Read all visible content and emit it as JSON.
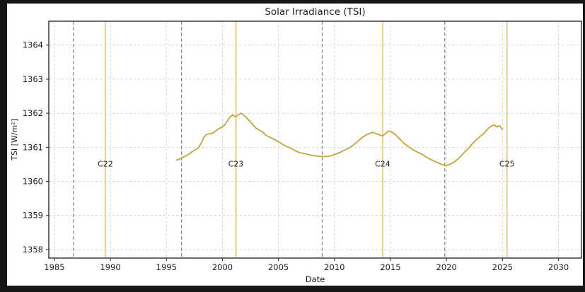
{
  "window": {
    "frame_color": "#161616",
    "figure_background": "#ffffff"
  },
  "chart_data": {
    "type": "line",
    "title": "Solar Irradiance (TSI)",
    "xlabel": "Date",
    "ylabel": "TSI [W/m²]",
    "xlim": [
      1984.5,
      2032.05
    ],
    "ylim": [
      1357.75,
      1364.7
    ],
    "xticks": [
      1985,
      1990,
      1995,
      2000,
      2005,
      2010,
      2015,
      2020,
      2025,
      2030
    ],
    "yticks": [
      1358,
      1359,
      1360,
      1361,
      1362,
      1363,
      1364
    ],
    "grid": true,
    "colors": {
      "line": "#C9A339",
      "cycle_max_line": "#EFD28F",
      "cycle_min_line": "#707070",
      "grid": "#CFCFCF",
      "axis_border": "#3A3A3A",
      "text": "#1F1F1F"
    },
    "solar_cycle_maxima": [
      {
        "label": "C22",
        "year": 1989.55
      },
      {
        "label": "C23",
        "year": 2001.2
      },
      {
        "label": "C24",
        "year": 2014.3
      },
      {
        "label": "C25",
        "year": 2025.4
      }
    ],
    "solar_cycle_minima_years": [
      1986.7,
      1996.35,
      2008.9,
      2019.85
    ],
    "cycle_label_y": 1360.52,
    "series": [
      {
        "name": "TSI",
        "color": "#C9A339",
        "points": [
          [
            1995.9,
            1360.62
          ],
          [
            1996.15,
            1360.65
          ],
          [
            1996.4,
            1360.7
          ],
          [
            1996.7,
            1360.74
          ],
          [
            1997.0,
            1360.8
          ],
          [
            1997.3,
            1360.87
          ],
          [
            1997.6,
            1360.93
          ],
          [
            1997.9,
            1361.0
          ],
          [
            1998.1,
            1361.12
          ],
          [
            1998.35,
            1361.3
          ],
          [
            1998.6,
            1361.38
          ],
          [
            1998.9,
            1361.4
          ],
          [
            1999.15,
            1361.42
          ],
          [
            1999.4,
            1361.48
          ],
          [
            1999.7,
            1361.55
          ],
          [
            2000.0,
            1361.6
          ],
          [
            2000.2,
            1361.66
          ],
          [
            2000.45,
            1361.78
          ],
          [
            2000.7,
            1361.9
          ],
          [
            2000.9,
            1361.95
          ],
          [
            2001.15,
            1361.9
          ],
          [
            2001.45,
            1361.96
          ],
          [
            2001.7,
            1362.0
          ],
          [
            2001.95,
            1361.93
          ],
          [
            2002.2,
            1361.85
          ],
          [
            2002.45,
            1361.76
          ],
          [
            2002.75,
            1361.65
          ],
          [
            2003.0,
            1361.56
          ],
          [
            2003.3,
            1361.5
          ],
          [
            2003.6,
            1361.45
          ],
          [
            2003.9,
            1361.35
          ],
          [
            2004.2,
            1361.3
          ],
          [
            2004.6,
            1361.24
          ],
          [
            2004.9,
            1361.18
          ],
          [
            2005.3,
            1361.1
          ],
          [
            2005.7,
            1361.03
          ],
          [
            2006.1,
            1360.97
          ],
          [
            2006.5,
            1360.9
          ],
          [
            2006.9,
            1360.84
          ],
          [
            2007.3,
            1360.82
          ],
          [
            2007.7,
            1360.78
          ],
          [
            2008.1,
            1360.76
          ],
          [
            2008.5,
            1360.74
          ],
          [
            2008.9,
            1360.73
          ],
          [
            2009.3,
            1360.73
          ],
          [
            2009.7,
            1360.75
          ],
          [
            2010.1,
            1360.8
          ],
          [
            2010.5,
            1360.85
          ],
          [
            2010.9,
            1360.92
          ],
          [
            2011.3,
            1360.98
          ],
          [
            2011.7,
            1361.07
          ],
          [
            2012.1,
            1361.18
          ],
          [
            2012.45,
            1361.28
          ],
          [
            2012.8,
            1361.36
          ],
          [
            2013.1,
            1361.4
          ],
          [
            2013.4,
            1361.44
          ],
          [
            2013.7,
            1361.4
          ],
          [
            2014.0,
            1361.37
          ],
          [
            2014.3,
            1361.33
          ],
          [
            2014.6,
            1361.42
          ],
          [
            2014.85,
            1361.48
          ],
          [
            2015.1,
            1361.45
          ],
          [
            2015.45,
            1361.37
          ],
          [
            2015.8,
            1361.25
          ],
          [
            2016.2,
            1361.12
          ],
          [
            2016.6,
            1361.02
          ],
          [
            2017.0,
            1360.93
          ],
          [
            2017.4,
            1360.86
          ],
          [
            2017.8,
            1360.8
          ],
          [
            2018.2,
            1360.71
          ],
          [
            2018.6,
            1360.64
          ],
          [
            2019.0,
            1360.58
          ],
          [
            2019.4,
            1360.52
          ],
          [
            2019.9,
            1360.46
          ],
          [
            2020.3,
            1360.5
          ],
          [
            2020.7,
            1360.57
          ],
          [
            2021.1,
            1360.68
          ],
          [
            2021.5,
            1360.82
          ],
          [
            2021.9,
            1360.95
          ],
          [
            2022.3,
            1361.1
          ],
          [
            2022.7,
            1361.23
          ],
          [
            2023.0,
            1361.32
          ],
          [
            2023.4,
            1361.42
          ],
          [
            2023.7,
            1361.55
          ],
          [
            2024.0,
            1361.62
          ],
          [
            2024.25,
            1361.66
          ],
          [
            2024.5,
            1361.6
          ],
          [
            2024.75,
            1361.63
          ],
          [
            2025.0,
            1361.52
          ]
        ]
      }
    ]
  }
}
